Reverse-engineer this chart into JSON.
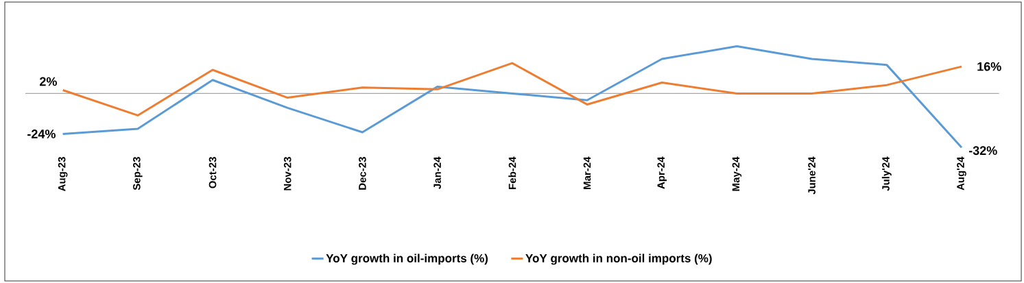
{
  "chart_data": {
    "type": "line",
    "categories": [
      "Aug-23",
      "Sep-23",
      "Oct-23",
      "Nov-23",
      "Dec-23",
      "Jan-24",
      "Feb-24",
      "Mar-24",
      "Apr-24",
      "May-24",
      "June'24",
      "July'24",
      "Aug'24"
    ],
    "series": [
      {
        "name": "YoY growth in oil-imports (%)",
        "color": "#5b9bd5",
        "values": [
          -24,
          -21,
          8,
          -8.5,
          -23,
          4,
          0,
          -4,
          20.5,
          28,
          20.5,
          17,
          -32
        ],
        "value_labels": [
          "-24%",
          null,
          null,
          null,
          null,
          null,
          null,
          null,
          null,
          null,
          null,
          null,
          "-32%"
        ]
      },
      {
        "name": "YoY growth in non-oil imports (%)",
        "color": "#ed7d31",
        "values": [
          2,
          -13,
          14,
          -2.5,
          3.5,
          2.5,
          18,
          -6.5,
          6.5,
          0,
          0,
          5,
          16
        ],
        "value_labels": [
          "2%",
          null,
          null,
          null,
          null,
          null,
          null,
          null,
          null,
          null,
          null,
          null,
          "16%"
        ]
      }
    ],
    "ref_lines": [
      {
        "axis": "y",
        "value": 0,
        "color": "#a6a6a6"
      }
    ],
    "legend": "bottom"
  }
}
